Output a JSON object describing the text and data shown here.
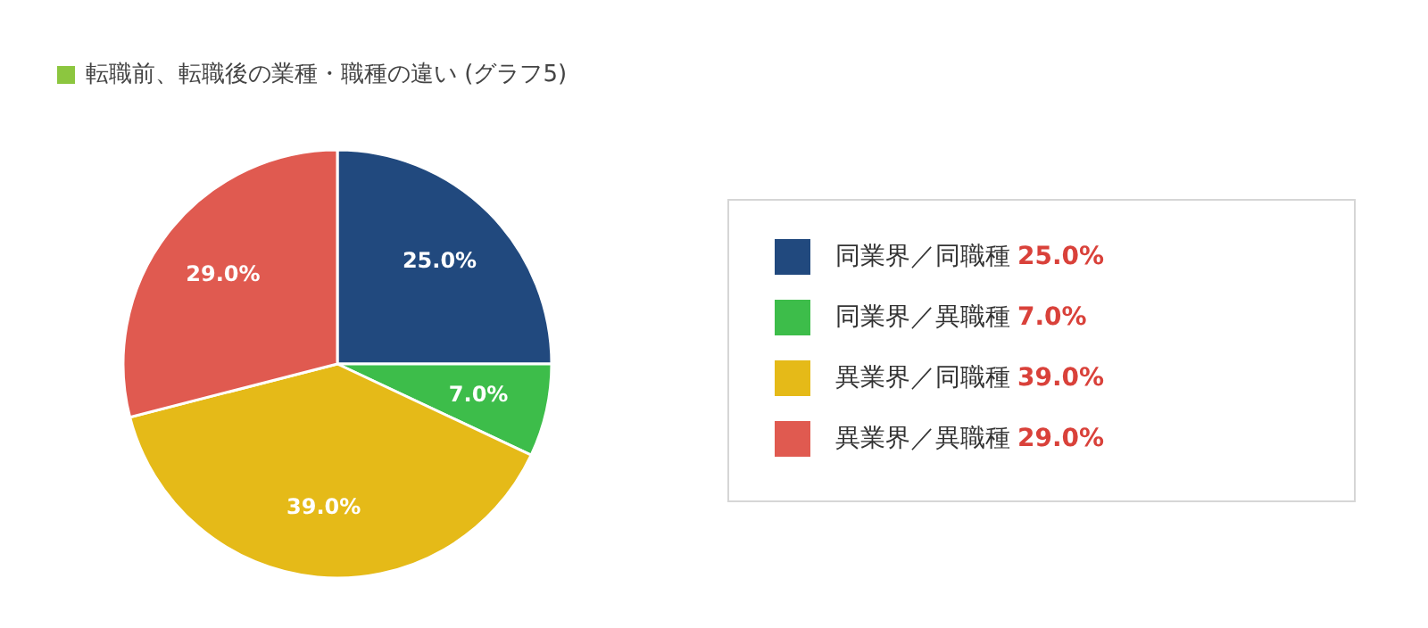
{
  "chart_data": {
    "type": "pie",
    "title": "転職前、転職後の業種・職種の違い (グラフ5)",
    "categories": [
      "同業界／同職種",
      "同業界／異職種",
      "異業界／同職種",
      "異業界／異職種"
    ],
    "values": [
      25,
      7,
      39,
      29
    ],
    "colors": [
      "#21497e",
      "#3dbd4a",
      "#e5ba18",
      "#e05a50"
    ],
    "value_labels": [
      "25.0%",
      "7.0%",
      "39.0%",
      "29.0%"
    ],
    "legend": "right"
  }
}
